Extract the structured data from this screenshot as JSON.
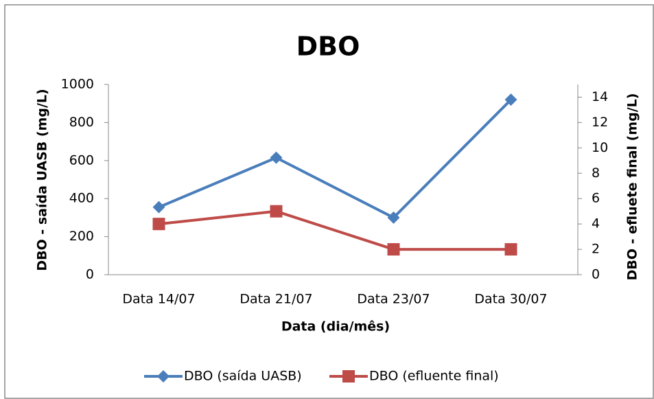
{
  "chart_data": {
    "type": "line",
    "title": "DBO",
    "x_label": "Data (dia/mês)",
    "y_label": "DBO - saída UASB (mg/L)",
    "y2_label": "DBO - efluete final (mg/L)",
    "categories": [
      "Data 14/07",
      "Data 21/07",
      "Data 23/07",
      "Data 30/07"
    ],
    "series": [
      {
        "name": "DBO (saída UASB)",
        "color": "#4a7ebb",
        "marker": "diamond",
        "values": [
          355,
          615,
          300,
          920
        ]
      },
      {
        "name": "DBO (efluente final)",
        "color": "#be4b48",
        "marker": "square",
        "axis": "y2",
        "values": [
          4,
          5,
          2,
          2
        ]
      }
    ],
    "ylim": [
      0,
      1000
    ],
    "yticks": [
      0,
      200,
      400,
      600,
      800,
      1000
    ],
    "y2lim": [
      0,
      15
    ],
    "y2ticks": [
      0,
      2,
      4,
      6,
      8,
      10,
      12,
      14
    ],
    "legend": "bottom",
    "grid": false
  }
}
